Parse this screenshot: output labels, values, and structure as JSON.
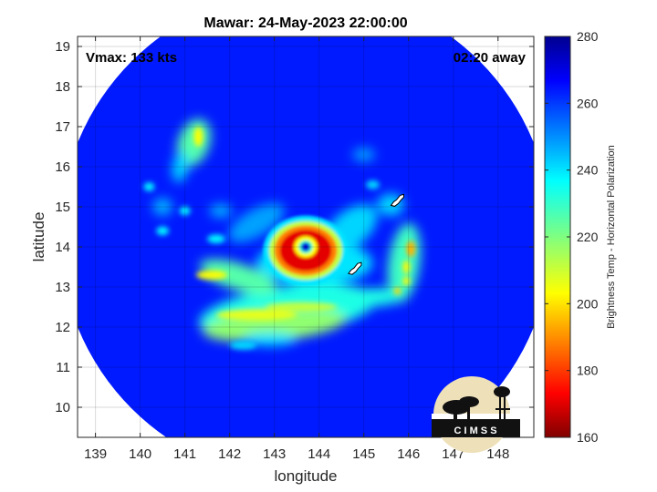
{
  "chart_data": {
    "type": "heatmap",
    "title": "Mawar: 24-May-2023 22:00:00",
    "xlabel": "longitude",
    "ylabel": "latitude",
    "xlim": [
      138.6,
      148.8
    ],
    "ylim": [
      9.25,
      19.25
    ],
    "xticks": [
      139,
      140,
      141,
      142,
      143,
      144,
      145,
      146,
      147,
      148
    ],
    "yticks": [
      10,
      11,
      12,
      13,
      14,
      15,
      16,
      17,
      18,
      19
    ],
    "grid": true,
    "annotations": {
      "left": "Vmax: 133 kts",
      "right": "02:20 away"
    },
    "colorbar": {
      "label": "Brightness Temp - Horizontal Polarization",
      "min": 160,
      "max": 280,
      "ticks": [
        160,
        180,
        200,
        220,
        240,
        260,
        280
      ],
      "colormap": "jet"
    },
    "storm": {
      "eye_center": [
        143.75,
        14.0
      ],
      "swath_center": [
        143.7,
        14.3
      ],
      "swath_radius_deg": 5.5,
      "background_temp": 262,
      "eyewall_temp": 172,
      "eye_temp": 258
    },
    "islands": [
      "Guam",
      "Saipan"
    ],
    "logo_text": "C I M S S"
  }
}
